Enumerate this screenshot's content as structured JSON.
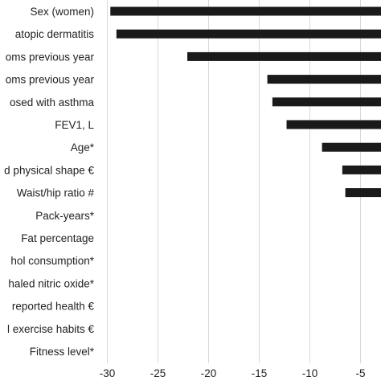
{
  "chart_data": {
    "type": "bar",
    "orientation": "horizontal",
    "title": "",
    "xlabel": "",
    "ylabel": "",
    "xlim": [
      -30,
      -3.5
    ],
    "x_ticks": [
      -30,
      -25,
      -20,
      -15,
      -10,
      -5
    ],
    "x_tick_labels": [
      "-30",
      "-25",
      "-20",
      "-15",
      "-10",
      "-5"
    ],
    "grid": "vertical",
    "legend": "none",
    "bar_color": "#1a1a1a",
    "categories": [
      "Sex (women)",
      "atopic dermatitis",
      "oms previous year",
      "oms previous year",
      "osed with asthma",
      "FEV1, L",
      "Age*",
      "d physical shape €",
      "Waist/hip ratio #",
      "Pack-years*",
      "Fat percentage",
      "hol consumption*",
      "haled nitric oxide*",
      "reported health €",
      "l exercise habits €",
      "Fitness level*"
    ],
    "values": [
      -29.7,
      -29.1,
      -22.1,
      -14.2,
      -13.7,
      -12.3,
      -8.8,
      -6.8,
      -6.5,
      null,
      null,
      null,
      null,
      null,
      null,
      null
    ]
  }
}
